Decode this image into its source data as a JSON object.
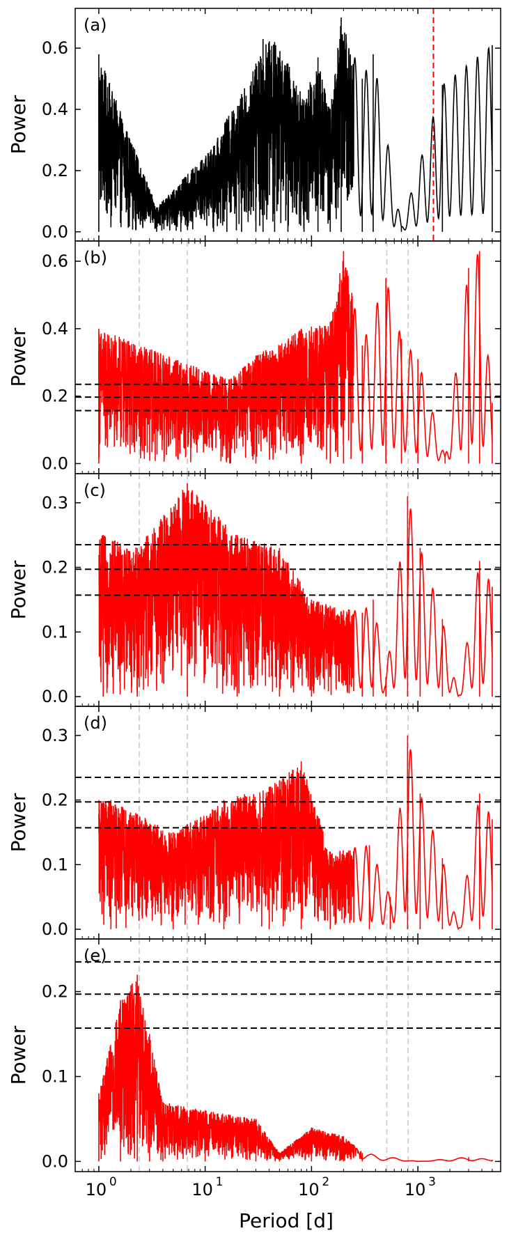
{
  "figure": {
    "xlabel": "Period [d]",
    "ylabel": "Power"
  },
  "colors": {
    "black": "#000000",
    "red": "#ff0000",
    "grey_guide": "#d3d3d3"
  },
  "chart_data": [
    {
      "type": "line",
      "panel": "(a)",
      "xscale": "log",
      "xlim": [
        0.6,
        6000
      ],
      "ylim": [
        -0.03,
        0.73
      ],
      "yticks": [
        0.0,
        0.2,
        0.4,
        0.6
      ],
      "ytick_labels": [
        "0.0",
        "0.2",
        "0.4",
        "0.6"
      ],
      "series": [
        {
          "color": "#000000",
          "peaks": [
            [
              1.0,
              0.58
            ],
            [
              3.5,
              0.08
            ],
            [
              12,
              0.28
            ],
            [
              16,
              0.37
            ],
            [
              22,
              0.45
            ],
            [
              30,
              0.55
            ],
            [
              35,
              0.63
            ],
            [
              45,
              0.62
            ],
            [
              60,
              0.55
            ],
            [
              85,
              0.43
            ],
            [
              115,
              0.57
            ],
            [
              150,
              0.4
            ],
            [
              190,
              0.7
            ],
            [
              300,
              0.5
            ],
            [
              380,
              0.58
            ],
            [
              700,
              0.02
            ],
            [
              1700,
              0.48
            ],
            [
              5000,
              0.61
            ]
          ]
        }
      ],
      "vlines": [
        {
          "x": 1400,
          "color": "#ff0000",
          "style": "dashed"
        }
      ],
      "hlines": []
    },
    {
      "type": "line",
      "panel": "(b)",
      "xscale": "log",
      "xlim": [
        0.6,
        6000
      ],
      "ylim": [
        -0.03,
        0.66
      ],
      "yticks": [
        0.0,
        0.2,
        0.4,
        0.6
      ],
      "ytick_labels": [
        "0.0",
        "0.2",
        "0.4",
        "0.6"
      ],
      "series": [
        {
          "color": "#ff0000",
          "peaks": [
            [
              1.0,
              0.4
            ],
            [
              17,
              0.25
            ],
            [
              30,
              0.32
            ],
            [
              80,
              0.4
            ],
            [
              150,
              0.42
            ],
            [
              200,
              0.63
            ],
            [
              300,
              0.35
            ],
            [
              500,
              0.55
            ],
            [
              700,
              0.37
            ],
            [
              1000,
              0.31
            ],
            [
              1800,
              0.02
            ],
            [
              3000,
              0.58
            ],
            [
              3800,
              0.63
            ],
            [
              5000,
              0.18
            ]
          ]
        }
      ],
      "vlines": [
        {
          "x": 2.4,
          "color": "#d3d3d3",
          "style": "dashed"
        },
        {
          "x": 6.8,
          "color": "#d3d3d3",
          "style": "dashed"
        },
        {
          "x": 510,
          "color": "#d3d3d3",
          "style": "dashed"
        },
        {
          "x": 810,
          "color": "#d3d3d3",
          "style": "dashed"
        }
      ],
      "hlines": [
        0.235,
        0.197,
        0.157
      ]
    },
    {
      "type": "line",
      "panel": "(c)",
      "xscale": "log",
      "xlim": [
        0.6,
        6000
      ],
      "ylim": [
        -0.015,
        0.345
      ],
      "yticks": [
        0.0,
        0.1,
        0.2,
        0.3
      ],
      "ytick_labels": [
        "0.0",
        "0.1",
        "0.2",
        "0.3"
      ],
      "series": [
        {
          "color": "#ff0000",
          "peaks": [
            [
              1.1,
              0.25
            ],
            [
              2.3,
              0.23
            ],
            [
              6.8,
              0.33
            ],
            [
              20,
              0.25
            ],
            [
              50,
              0.23
            ],
            [
              100,
              0.15
            ],
            [
              300,
              0.13
            ],
            [
              380,
              0.15
            ],
            [
              500,
              0.03
            ],
            [
              800,
              0.31
            ],
            [
              1050,
              0.23
            ],
            [
              1700,
              0.12
            ],
            [
              2400,
              0.0
            ],
            [
              3800,
              0.21
            ],
            [
              5000,
              0.17
            ]
          ]
        }
      ],
      "vlines": [
        {
          "x": 2.4,
          "color": "#d3d3d3",
          "style": "dashed"
        },
        {
          "x": 6.8,
          "color": "#d3d3d3",
          "style": "dashed"
        },
        {
          "x": 510,
          "color": "#d3d3d3",
          "style": "dashed"
        },
        {
          "x": 810,
          "color": "#d3d3d3",
          "style": "dashed"
        }
      ],
      "hlines": [
        0.235,
        0.197,
        0.157
      ]
    },
    {
      "type": "line",
      "panel": "(d)",
      "xscale": "log",
      "xlim": [
        0.6,
        6000
      ],
      "ylim": [
        -0.015,
        0.345
      ],
      "yticks": [
        0.0,
        0.1,
        0.2,
        0.3
      ],
      "ytick_labels": [
        "0.0",
        "0.1",
        "0.2",
        "0.3"
      ],
      "series": [
        {
          "color": "#ff0000",
          "peaks": [
            [
              1.3,
              0.2
            ],
            [
              5,
              0.15
            ],
            [
              15,
              0.2
            ],
            [
              40,
              0.22
            ],
            [
              80,
              0.26
            ],
            [
              150,
              0.12
            ],
            [
              350,
              0.13
            ],
            [
              550,
              0.05
            ],
            [
              800,
              0.3
            ],
            [
              1050,
              0.21
            ],
            [
              1700,
              0.11
            ],
            [
              2400,
              0.0
            ],
            [
              3800,
              0.21
            ],
            [
              5000,
              0.17
            ]
          ]
        }
      ],
      "vlines": [
        {
          "x": 2.4,
          "color": "#d3d3d3",
          "style": "dashed"
        },
        {
          "x": 6.8,
          "color": "#d3d3d3",
          "style": "dashed"
        },
        {
          "x": 510,
          "color": "#d3d3d3",
          "style": "dashed"
        },
        {
          "x": 810,
          "color": "#d3d3d3",
          "style": "dashed"
        }
      ],
      "hlines": [
        0.235,
        0.197,
        0.157
      ]
    },
    {
      "type": "line",
      "panel": "(e)",
      "xscale": "log",
      "xlim": [
        0.6,
        6000
      ],
      "ylim": [
        -0.012,
        0.262
      ],
      "yticks": [
        0.0,
        0.1,
        0.2
      ],
      "ytick_labels": [
        "0.0",
        "0.1",
        "0.2"
      ],
      "xticks": [
        1,
        10,
        100,
        1000
      ],
      "xtick_labels": [
        "10",
        "10",
        "10",
        "10"
      ],
      "xtick_exponents": [
        "0",
        "1",
        "2",
        "3"
      ],
      "series": [
        {
          "color": "#ff0000",
          "peaks": [
            [
              1.0,
              0.08
            ],
            [
              1.6,
              0.19
            ],
            [
              2.3,
              0.22
            ],
            [
              3.0,
              0.15
            ],
            [
              4.0,
              0.07
            ],
            [
              10,
              0.06
            ],
            [
              30,
              0.05
            ],
            [
              50,
              0.01
            ],
            [
              100,
              0.04
            ],
            [
              200,
              0.03
            ],
            [
              300,
              0.01
            ],
            [
              1000,
              0.0
            ],
            [
              3000,
              0.005
            ],
            [
              5000,
              0.002
            ]
          ]
        }
      ],
      "vlines": [
        {
          "x": 2.4,
          "color": "#d3d3d3",
          "style": "dashed"
        },
        {
          "x": 6.8,
          "color": "#d3d3d3",
          "style": "dashed"
        },
        {
          "x": 510,
          "color": "#d3d3d3",
          "style": "dashed"
        },
        {
          "x": 810,
          "color": "#d3d3d3",
          "style": "dashed"
        }
      ],
      "hlines": [
        0.235,
        0.197,
        0.157
      ]
    }
  ]
}
